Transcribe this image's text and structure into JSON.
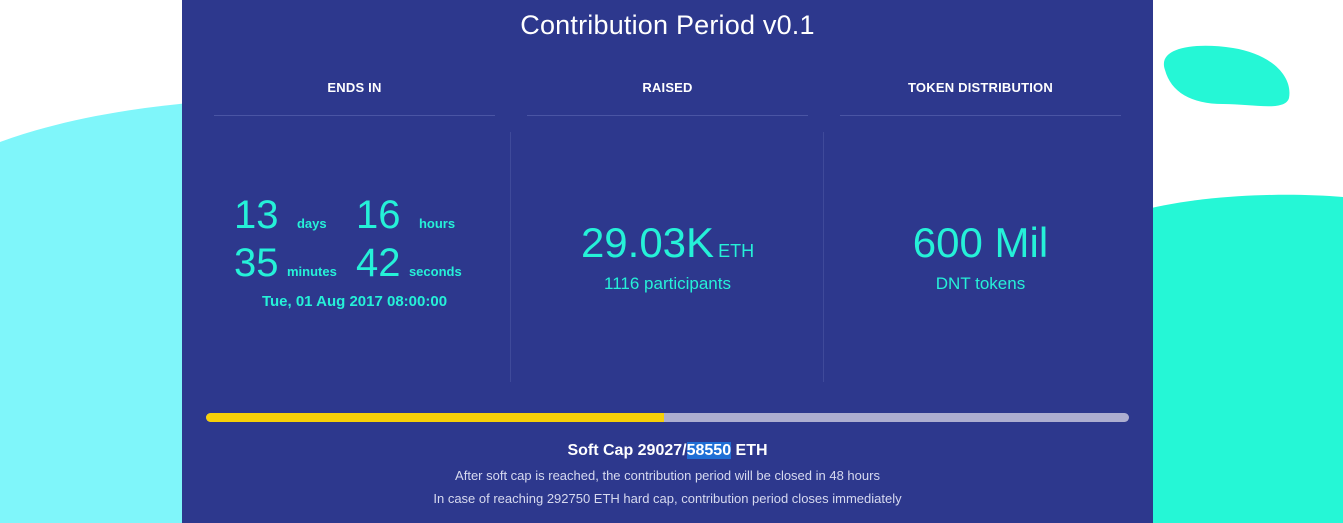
{
  "page": {
    "title": "Contribution Period v0.1"
  },
  "colors": {
    "panel": "#2d388d",
    "accent": "#25f1d8",
    "progress_fill": "#f7d008",
    "progress_track": "#adaed0",
    "background_wave": "#25f1d8"
  },
  "ends_in": {
    "header": "ENDS IN",
    "days_value": "13",
    "days_label": "days",
    "hours_value": "16",
    "hours_label": "hours",
    "minutes_value": "35",
    "minutes_label": "minutes",
    "seconds_value": "42",
    "seconds_label": "seconds",
    "end_date": "Tue, 01 Aug 2017 08:00:00"
  },
  "raised": {
    "header": "RAISED",
    "amount": "29.03K",
    "unit": "ETH",
    "participants": "1116 participants"
  },
  "token_distribution": {
    "header": "TOKEN DISTRIBUTION",
    "amount": "600 Mil",
    "label": "DNT tokens"
  },
  "progress": {
    "fraction": 0.4958
  },
  "soft_cap": {
    "prefix": "Soft Cap 29027/",
    "highlighted": "58550",
    "suffix": " ETH",
    "note_1": "After soft cap is reached, the contribution period will be closed in 48 hours",
    "note_2": "In case of reaching 292750 ETH hard cap, contribution period closes immediately"
  }
}
